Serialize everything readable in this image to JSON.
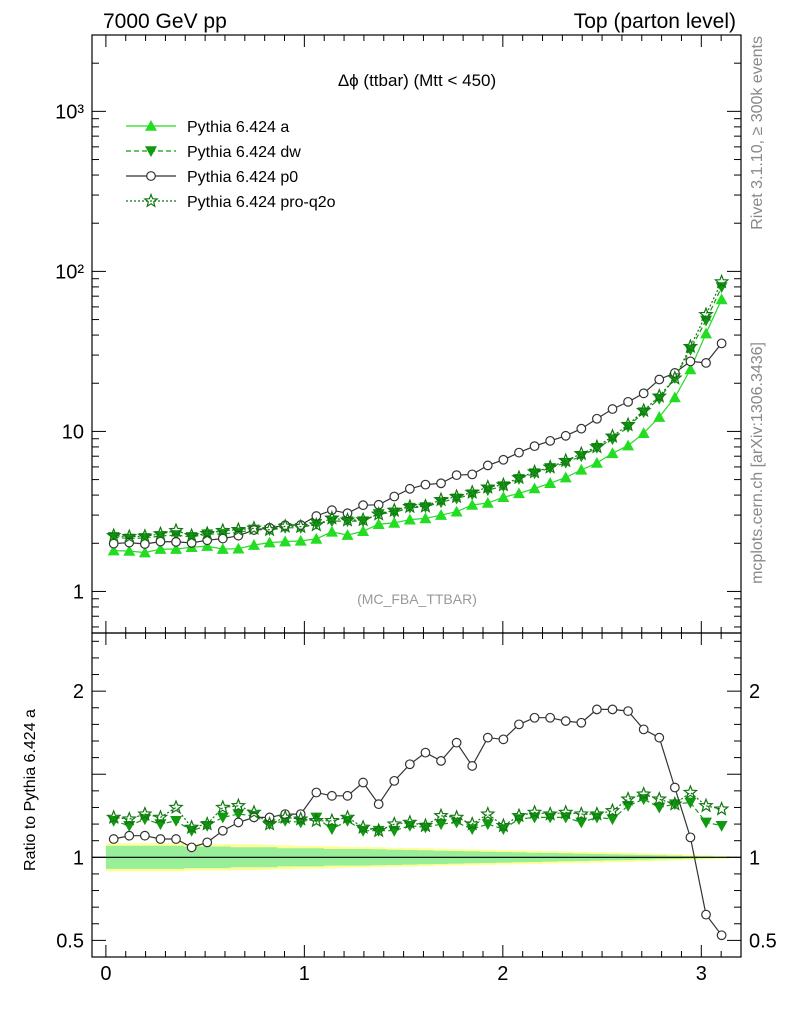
{
  "header": {
    "left": "7000 GeV pp",
    "right": "Top (parton level)"
  },
  "side_labels": {
    "rivet": "Rivet 3.1.10, ≥ 300k events",
    "mcplots": "mcplots.cern.ch [arXiv:1306.3436]"
  },
  "colors": {
    "a": "#22dd22",
    "dw": "#119911",
    "p0": "#333333",
    "pro_q2o": "#117711",
    "band_inner": "#99ee99",
    "band_outer": "#ffff99"
  },
  "chart_data": [
    {
      "type": "line",
      "title": "Δϕ (ttbar) (Mtt < 450)",
      "annotation": "(MC_FBA_TTBAR)",
      "xlabel": "",
      "ylabel": "",
      "xlim": [
        -0.07,
        3.2
      ],
      "ylim": [
        0.55,
        3000
      ],
      "yscale": "log",
      "yticklabels": [
        "1",
        "10",
        "10²",
        "10³"
      ],
      "legend": "top-left",
      "x": [
        0.0393,
        0.1178,
        0.1963,
        0.2749,
        0.3534,
        0.432,
        0.5105,
        0.589,
        0.6676,
        0.7461,
        0.8247,
        0.9032,
        0.9817,
        1.0603,
        1.1388,
        1.2174,
        1.2959,
        1.3744,
        1.453,
        1.5315,
        1.6101,
        1.6886,
        1.7671,
        1.8457,
        1.9242,
        2.0028,
        2.0813,
        2.1598,
        2.2384,
        2.3169,
        2.3955,
        2.474,
        2.5525,
        2.6311,
        2.7096,
        2.7882,
        2.8667,
        2.9452,
        3.0238,
        3.1023
      ],
      "series": [
        {
          "name": "Pythia 6.424 a",
          "key": "a",
          "marker": "triangle-up",
          "line": "solid",
          "values": [
            1.8,
            1.79,
            1.75,
            1.84,
            1.84,
            1.89,
            1.92,
            1.84,
            1.85,
            1.95,
            2.02,
            2.05,
            2.07,
            2.13,
            2.36,
            2.25,
            2.38,
            2.63,
            2.68,
            2.81,
            2.86,
            3.0,
            3.15,
            3.47,
            3.57,
            3.88,
            4.1,
            4.4,
            4.75,
            5.15,
            5.75,
            6.35,
            7.3,
            8.15,
            9.75,
            12.3,
            16.3,
            24.4,
            40.9,
            66.8
          ]
        },
        {
          "name": "Pythia 6.424 dw",
          "key": "dw",
          "marker": "triangle-down",
          "line": "dashed",
          "values": [
            2.19,
            2.14,
            2.16,
            2.22,
            2.25,
            2.19,
            2.28,
            2.29,
            2.34,
            2.44,
            2.42,
            2.5,
            2.5,
            2.65,
            2.75,
            2.75,
            2.75,
            3.05,
            3.11,
            3.34,
            3.37,
            3.61,
            3.81,
            4.05,
            4.3,
            4.55,
            5.05,
            5.48,
            5.91,
            6.38,
            7.0,
            7.9,
            8.95,
            10.7,
            13.2,
            16.0,
            21.6,
            32.4,
            49.4,
            79.8
          ]
        },
        {
          "name": "Pythia 6.424 p0",
          "key": "p0",
          "marker": "circle-open",
          "line": "solid",
          "values": [
            1.99,
            2.02,
            1.98,
            2.05,
            2.04,
            2.01,
            2.09,
            2.14,
            2.23,
            2.42,
            2.5,
            2.59,
            2.6,
            2.96,
            3.22,
            3.08,
            3.46,
            3.48,
            3.92,
            4.38,
            4.65,
            4.74,
            5.33,
            5.39,
            6.13,
            6.65,
            7.37,
            8.09,
            8.73,
            9.39,
            10.4,
            12.0,
            13.8,
            15.3,
            17.3,
            21.1,
            23.2,
            27.4,
            26.8,
            35.5
          ]
        },
        {
          "name": "Pythia 6.424 pro-q2o",
          "key": "pro_q2o",
          "marker": "star-open",
          "line": "dotted",
          "values": [
            2.23,
            2.2,
            2.21,
            2.29,
            2.4,
            2.23,
            2.3,
            2.4,
            2.43,
            2.48,
            2.43,
            2.55,
            2.54,
            2.6,
            2.87,
            2.79,
            2.8,
            3.04,
            3.21,
            3.39,
            3.41,
            3.74,
            3.91,
            4.16,
            4.48,
            4.63,
            5.14,
            5.58,
            5.98,
            6.56,
            7.25,
            8.0,
            9.32,
            11.0,
            13.5,
            16.6,
            21.5,
            33.9,
            53.6,
            85.9
          ]
        }
      ]
    },
    {
      "type": "line",
      "ylabel": "Ratio to Pythia 6.424 a",
      "xlabel": "",
      "xlim": [
        -0.07,
        3.2
      ],
      "ylim": [
        0.4,
        2.35
      ],
      "xticklabels": [
        "0",
        "1",
        "2",
        "3"
      ],
      "yticklabels": [
        "0.5",
        "1",
        "2"
      ],
      "reference_line": 1,
      "x": [
        0.0393,
        0.1178,
        0.1963,
        0.2749,
        0.3534,
        0.432,
        0.5105,
        0.589,
        0.6676,
        0.7461,
        0.8247,
        0.9032,
        0.9817,
        1.0603,
        1.1388,
        1.2174,
        1.2959,
        1.3744,
        1.453,
        1.5315,
        1.6101,
        1.6886,
        1.7671,
        1.8457,
        1.9242,
        2.0028,
        2.0813,
        2.1598,
        2.2384,
        2.3169,
        2.3955,
        2.474,
        2.5525,
        2.6311,
        2.7096,
        2.7882,
        2.8667,
        2.9452,
        3.0238,
        3.1023
      ],
      "band": {
        "inner": [
          0.07,
          0.07,
          0.07,
          0.07,
          0.07,
          0.065,
          0.065,
          0.065,
          0.06,
          0.06,
          0.06,
          0.055,
          0.055,
          0.055,
          0.05,
          0.05,
          0.05,
          0.048,
          0.046,
          0.044,
          0.042,
          0.04,
          0.038,
          0.036,
          0.034,
          0.032,
          0.03,
          0.028,
          0.026,
          0.024,
          0.022,
          0.02,
          0.018,
          0.016,
          0.014,
          0.012,
          0.01,
          0.008,
          0.006,
          0.005
        ],
        "outer": [
          0.085,
          0.085,
          0.085,
          0.085,
          0.085,
          0.08,
          0.08,
          0.08,
          0.078,
          0.078,
          0.075,
          0.073,
          0.07,
          0.068,
          0.066,
          0.064,
          0.062,
          0.06,
          0.058,
          0.056,
          0.054,
          0.052,
          0.05,
          0.048,
          0.046,
          0.044,
          0.042,
          0.04,
          0.038,
          0.036,
          0.034,
          0.032,
          0.03,
          0.028,
          0.025,
          0.022,
          0.019,
          0.016,
          0.012,
          0.008
        ]
      },
      "series": [
        {
          "name": "Pythia 6.424 dw",
          "key": "dw",
          "marker": "triangle-down",
          "line": "dashed",
          "values": [
            1.22,
            1.19,
            1.23,
            1.2,
            1.22,
            1.16,
            1.19,
            1.24,
            1.26,
            1.25,
            1.2,
            1.22,
            1.21,
            1.24,
            1.17,
            1.22,
            1.16,
            1.16,
            1.16,
            1.19,
            1.18,
            1.2,
            1.21,
            1.17,
            1.2,
            1.17,
            1.23,
            1.24,
            1.24,
            1.24,
            1.21,
            1.24,
            1.23,
            1.31,
            1.35,
            1.3,
            1.32,
            1.33,
            1.21,
            1.19
          ]
        },
        {
          "name": "Pythia 6.424 p0",
          "key": "p0",
          "marker": "circle-open",
          "line": "solid",
          "values": [
            1.11,
            1.13,
            1.13,
            1.11,
            1.11,
            1.06,
            1.09,
            1.16,
            1.21,
            1.24,
            1.24,
            1.26,
            1.26,
            1.39,
            1.37,
            1.37,
            1.45,
            1.32,
            1.46,
            1.56,
            1.63,
            1.58,
            1.69,
            1.55,
            1.72,
            1.71,
            1.8,
            1.84,
            1.84,
            1.82,
            1.81,
            1.89,
            1.89,
            1.88,
            1.77,
            1.72,
            1.42,
            1.12,
            0.655,
            0.531
          ]
        },
        {
          "name": "Pythia 6.424 pro-q2o",
          "key": "pro_q2o",
          "marker": "star-open",
          "line": "dotted",
          "values": [
            1.24,
            1.23,
            1.26,
            1.24,
            1.3,
            1.18,
            1.2,
            1.3,
            1.31,
            1.27,
            1.2,
            1.24,
            1.23,
            1.22,
            1.22,
            1.24,
            1.18,
            1.16,
            1.2,
            1.21,
            1.19,
            1.25,
            1.24,
            1.2,
            1.26,
            1.19,
            1.25,
            1.27,
            1.26,
            1.27,
            1.26,
            1.26,
            1.28,
            1.35,
            1.38,
            1.35,
            1.32,
            1.39,
            1.31,
            1.29
          ]
        }
      ]
    }
  ]
}
